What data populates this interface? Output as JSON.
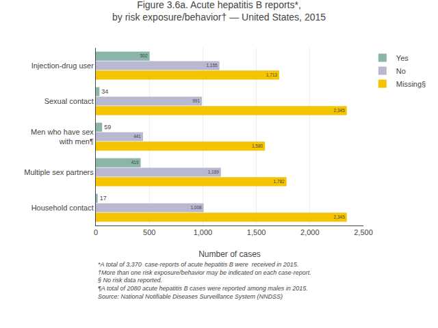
{
  "chart_data": {
    "type": "bar",
    "orientation": "horizontal",
    "title": "Figure 3.6a. Acute hepatitis B reports*,\nby risk exposure/behavior† — United States, 2015",
    "categories": [
      "Injection-drug user",
      "Sexual contact",
      "Men who have sex\nwith men¶",
      "Multiple sex partners",
      "Household contact"
    ],
    "series": [
      {
        "name": "Yes",
        "color": "#8ab5a8",
        "values": [
          502,
          34,
          59,
          419,
          17
        ],
        "value_labels": [
          "502",
          "34",
          "59",
          "419",
          "17"
        ]
      },
      {
        "name": "No",
        "color": "#b8b8d0",
        "values": [
          1155,
          991,
          441,
          1169,
          1008
        ],
        "value_labels": [
          "1,155",
          "991",
          "441",
          "1,169",
          "1,008"
        ]
      },
      {
        "name": "Missing§",
        "color": "#f5c400",
        "values": [
          1713,
          2345,
          1580,
          1782,
          2345
        ],
        "value_labels": [
          "1,713",
          "2,345",
          "1,580",
          "1,782",
          "2,345"
        ]
      }
    ],
    "xlabel": "Number of cases",
    "xlim": [
      0,
      2500
    ],
    "xticks": [
      0,
      500,
      {
        "value": 1000,
        "label": "1,000"
      },
      {
        "value": 1500,
        "label": "1,500"
      },
      {
        "value": 2000,
        "label": "2,000"
      },
      {
        "value": 2500,
        "label": "2,500"
      }
    ],
    "grid": true,
    "legend": "upper right",
    "data_labels": true,
    "annotations": [
      "*A total of 3,370  case-reports of acute hepatitis B were  received in 2015.",
      "†More than one risk exposure/behavior may be indicated on each case-report.",
      "§ No risk data reported.",
      "¶A total of 2080 acute hepatitis B cases were reported among males in 2015.",
      "Source: National Notifiable Diseases Surveillance System (NNDSS)"
    ]
  }
}
